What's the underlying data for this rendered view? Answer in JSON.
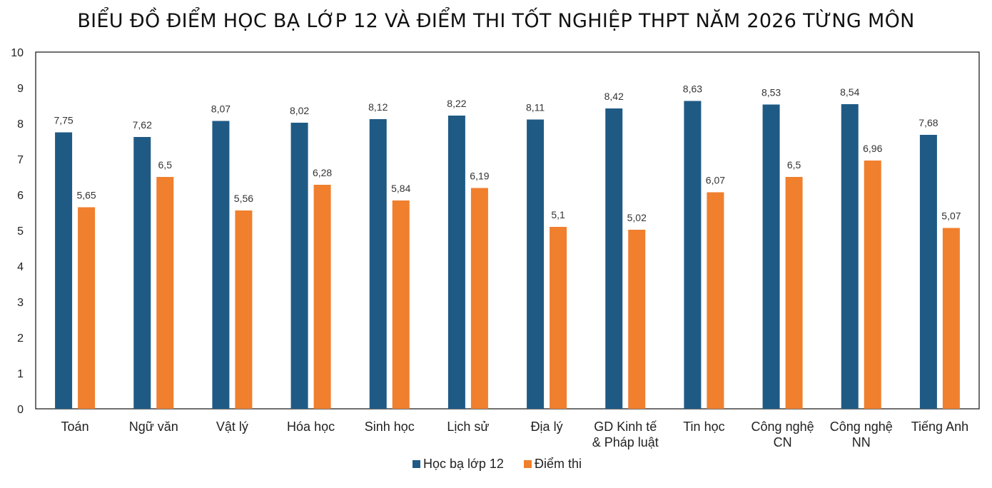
{
  "chart_data": {
    "type": "bar",
    "title": "BIỂU ĐỒ ĐIỂM HỌC BẠ LỚP 12 VÀ ĐIỂM THI TỐT NGHIỆP THPT NĂM 2026 TỪNG MÔN",
    "xlabel": "",
    "ylabel": "",
    "ylim": [
      0,
      10
    ],
    "yticks": [
      "0",
      "1",
      "2",
      "3",
      "4",
      "5",
      "6",
      "7",
      "8",
      "9",
      "10"
    ],
    "grid": false,
    "legend_position": "bottom",
    "categories": [
      [
        "Toán"
      ],
      [
        "Ngữ văn"
      ],
      [
        "Vật lý"
      ],
      [
        "Hóa học"
      ],
      [
        "Sinh học"
      ],
      [
        "Lịch sử"
      ],
      [
        "Địa lý"
      ],
      [
        "GD Kinh tế",
        "& Pháp luật"
      ],
      [
        "Tin học"
      ],
      [
        "Công nghệ",
        "CN"
      ],
      [
        "Công nghệ",
        "NN"
      ],
      [
        "Tiếng Anh"
      ]
    ],
    "series": [
      {
        "name": "Học bạ lớp 12",
        "color": "#1f5a85",
        "values": [
          7.75,
          7.62,
          8.07,
          8.02,
          8.12,
          8.22,
          8.11,
          8.42,
          8.63,
          8.53,
          8.54,
          7.68
        ],
        "labels": [
          "7,75",
          "7,62",
          "8,07",
          "8,02",
          "8,12",
          "8,22",
          "8,11",
          "8,42",
          "8,63",
          "8,53",
          "8,54",
          "7,68"
        ]
      },
      {
        "name": "Điểm thi",
        "color": "#f07f2e",
        "values": [
          5.65,
          6.5,
          5.56,
          6.28,
          5.84,
          6.19,
          5.1,
          5.02,
          6.07,
          6.5,
          6.96,
          5.07
        ],
        "labels": [
          "5,65",
          "6,5",
          "5,56",
          "6,28",
          "5,84",
          "6,19",
          "5,1",
          "5,02",
          "6,07",
          "6,5",
          "6,96",
          "5,07"
        ]
      }
    ]
  }
}
